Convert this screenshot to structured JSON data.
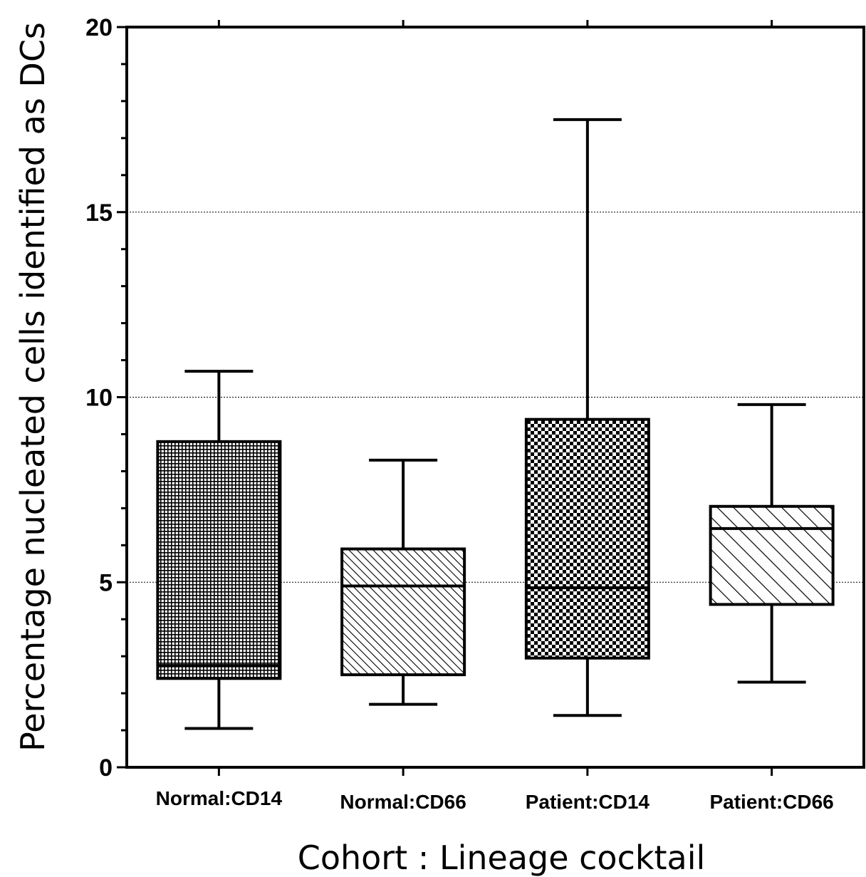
{
  "chart_data": {
    "type": "box",
    "xlabel": "Cohort : Lineage cocktail",
    "ylabel": "Percentage nucleated cells identified as DCs",
    "ylim": [
      0,
      20
    ],
    "yticks": [
      0,
      5,
      10,
      15,
      20
    ],
    "ytick_labels": [
      "0",
      "5",
      "10",
      "15",
      "20"
    ],
    "gridlines": [
      5,
      10,
      15
    ],
    "categories": [
      "Normal:CD14",
      "Normal:CD66",
      "Patient:CD14",
      "Patient:CD66"
    ],
    "boxes": [
      {
        "category": "Normal:CD14",
        "whisker_low": 1.05,
        "q1": 2.4,
        "median": 2.75,
        "q3": 8.8,
        "whisker_high": 10.7,
        "pattern": "fine-grid"
      },
      {
        "category": "Normal:CD66",
        "whisker_low": 1.7,
        "q1": 2.5,
        "median": 4.9,
        "q3": 5.9,
        "whisker_high": 8.3,
        "pattern": "dense-diagonal"
      },
      {
        "category": "Patient:CD14",
        "whisker_low": 1.4,
        "q1": 2.95,
        "median": 4.85,
        "q3": 9.4,
        "whisker_high": 17.5,
        "pattern": "checker"
      },
      {
        "category": "Patient:CD66",
        "whisker_low": 2.3,
        "q1": 4.4,
        "median": 6.45,
        "q3": 7.05,
        "whisker_high": 9.8,
        "pattern": "wide-diagonal"
      }
    ]
  }
}
